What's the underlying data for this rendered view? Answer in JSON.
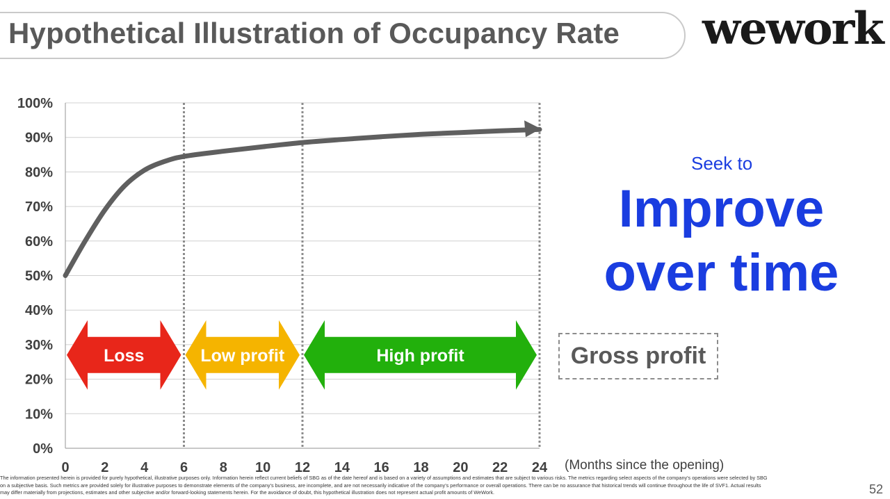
{
  "header": {
    "title": "Hypothetical Illustration of Occupancy Rate",
    "logo_text": "wework"
  },
  "chart_data": {
    "type": "line",
    "y_tick_labels": [
      "0%",
      "10%",
      "20%",
      "30%",
      "40%",
      "50%",
      "60%",
      "70%",
      "80%",
      "90%",
      "100%"
    ],
    "x_tick_labels": [
      "0",
      "2",
      "4",
      "6",
      "8",
      "10",
      "12",
      "14",
      "16",
      "18",
      "20",
      "22",
      "24"
    ],
    "xlabel": "(Months since the opening)",
    "ylim": [
      0,
      100
    ],
    "xlim": [
      0,
      24
    ],
    "grid": true,
    "x": [
      0,
      1,
      2,
      3,
      4,
      5,
      6,
      8,
      10,
      12,
      14,
      16,
      18,
      20,
      22,
      24
    ],
    "values": [
      50,
      60,
      69,
      76,
      80.5,
      83,
      84.5,
      86,
      87.3,
      88.5,
      89.4,
      90.2,
      90.9,
      91.4,
      91.9,
      92.3
    ],
    "line_color": "#5f5f5f",
    "phase_dividers": [
      6,
      12,
      24
    ],
    "phases": [
      {
        "label": "Loss",
        "start": 0,
        "end": 6,
        "color": "#e8261a"
      },
      {
        "label": "Low profit",
        "start": 6,
        "end": 12,
        "color": "#f5b400"
      },
      {
        "label": "High profit",
        "start": 12,
        "end": 24,
        "color": "#22b00c"
      }
    ],
    "phase_band_center": 27
  },
  "side": {
    "seek_text": "Seek to",
    "improve_text": "Improve over time",
    "gross_profit_text": "Gross profit"
  },
  "footer": {
    "disclaimer": "The information presented herein is provided for purely hypothetical, illustrative purposes only. Information herein reflect current beliefs of SBG as of the date hereof and is based on a variety of assumptions and estimates that are subject to various risks. The metrics regarding select aspects of the company's operations were selected by SBG on a subjective basis. Such metrics are provided solely for illustrative purposes to demonstrate elements of the company's business, are incomplete, and are not necessarily indicative of the company's performance or overall operations. There can be no assurance that historical trends will continue throughout the life of SVF1. Actual results may differ materially from projections, estimates and other subjective and/or forward-looking statements herein. For the avoidance of doubt, this hypothetical illustration does not represent actual profit amounts of WeWork.",
    "page_number": "52"
  },
  "colors": {
    "accent_blue": "#1a3de0",
    "text_gray": "#595959"
  }
}
